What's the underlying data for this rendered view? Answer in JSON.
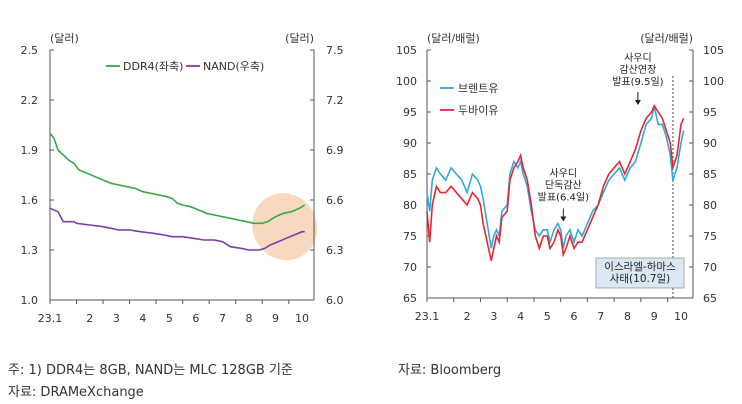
{
  "chart_data": [
    {
      "type": "line",
      "units": {
        "left": "(달러)",
        "right": "(달러)"
      },
      "x_ticks": [
        "23.1",
        "2",
        "3",
        "4",
        "5",
        "6",
        "7",
        "8",
        "9",
        "10"
      ],
      "left_axis": {
        "ylim": [
          1.0,
          2.5
        ],
        "ticks": [
          "2.5",
          "2.2",
          "1.9",
          "1.6",
          "1.3",
          "1.0"
        ]
      },
      "right_axis": {
        "ylim": [
          6.0,
          7.5
        ],
        "ticks": [
          "7.5",
          "7.2",
          "6.9",
          "6.6",
          "6.3",
          "6.0"
        ]
      },
      "legend_position": "top",
      "series": [
        {
          "name": "DDR4(좌축)",
          "axis": "left",
          "color": "#3aa845",
          "points": [
            [
              1.0,
              2.0
            ],
            [
              1.15,
              1.97
            ],
            [
              1.3,
              1.9
            ],
            [
              1.5,
              1.87
            ],
            [
              1.7,
              1.84
            ],
            [
              1.9,
              1.82
            ],
            [
              2.1,
              1.78
            ],
            [
              2.4,
              1.76
            ],
            [
              2.7,
              1.74
            ],
            [
              3.0,
              1.72
            ],
            [
              3.3,
              1.7
            ],
            [
              3.6,
              1.69
            ],
            [
              3.9,
              1.68
            ],
            [
              4.2,
              1.67
            ],
            [
              4.5,
              1.65
            ],
            [
              4.8,
              1.64
            ],
            [
              5.1,
              1.63
            ],
            [
              5.4,
              1.62
            ],
            [
              5.6,
              1.61
            ],
            [
              5.8,
              1.58
            ],
            [
              6.0,
              1.57
            ],
            [
              6.3,
              1.56
            ],
            [
              6.6,
              1.54
            ],
            [
              6.9,
              1.52
            ],
            [
              7.2,
              1.51
            ],
            [
              7.5,
              1.5
            ],
            [
              7.8,
              1.49
            ],
            [
              8.1,
              1.48
            ],
            [
              8.4,
              1.47
            ],
            [
              8.7,
              1.46
            ],
            [
              9.0,
              1.46
            ],
            [
              9.2,
              1.47
            ],
            [
              9.5,
              1.5
            ],
            [
              9.8,
              1.52
            ],
            [
              10.1,
              1.53
            ],
            [
              10.4,
              1.55
            ],
            [
              10.6,
              1.57
            ]
          ]
        },
        {
          "name": "NAND(우축)",
          "axis": "right",
          "color": "#7a3ea8",
          "points": [
            [
              1.0,
              6.55
            ],
            [
              1.3,
              6.53
            ],
            [
              1.5,
              6.47
            ],
            [
              1.9,
              6.47
            ],
            [
              2.0,
              6.46
            ],
            [
              2.5,
              6.45
            ],
            [
              3.0,
              6.44
            ],
            [
              3.3,
              6.43
            ],
            [
              3.6,
              6.42
            ],
            [
              4.0,
              6.42
            ],
            [
              4.4,
              6.41
            ],
            [
              4.9,
              6.4
            ],
            [
              5.3,
              6.39
            ],
            [
              5.6,
              6.38
            ],
            [
              6.0,
              6.38
            ],
            [
              6.4,
              6.37
            ],
            [
              6.8,
              6.36
            ],
            [
              7.2,
              6.36
            ],
            [
              7.5,
              6.35
            ],
            [
              7.8,
              6.32
            ],
            [
              8.2,
              6.31
            ],
            [
              8.5,
              6.3
            ],
            [
              8.9,
              6.3
            ],
            [
              9.1,
              6.31
            ],
            [
              9.3,
              6.33
            ],
            [
              9.6,
              6.35
            ],
            [
              9.9,
              6.37
            ],
            [
              10.2,
              6.39
            ],
            [
              10.5,
              6.41
            ],
            [
              10.6,
              6.41
            ]
          ]
        }
      ],
      "highlight_note": "orange-shaded region around September–October end of both series"
    },
    {
      "type": "line",
      "units": {
        "left": "(달러/배럴)",
        "right": "(달러/배럴)"
      },
      "x_ticks": [
        "23.1",
        "2",
        "3",
        "4",
        "5",
        "6",
        "7",
        "8",
        "9",
        "10"
      ],
      "ylim": [
        65,
        105
      ],
      "y_ticks": [
        "105",
        "100",
        "95",
        "90",
        "85",
        "80",
        "75",
        "70",
        "65"
      ],
      "legend_position": "top-left",
      "series": [
        {
          "name": "브렌트유",
          "color": "#34a8d8",
          "points": [
            [
              1.0,
              82
            ],
            [
              1.1,
              79
            ],
            [
              1.2,
              84
            ],
            [
              1.35,
              86
            ],
            [
              1.5,
              85
            ],
            [
              1.7,
              84
            ],
            [
              1.9,
              86
            ],
            [
              2.1,
              85
            ],
            [
              2.3,
              84
            ],
            [
              2.5,
              82
            ],
            [
              2.7,
              85
            ],
            [
              2.9,
              84
            ],
            [
              3.0,
              83
            ],
            [
              3.1,
              81
            ],
            [
              3.25,
              77
            ],
            [
              3.4,
              73
            ],
            [
              3.5,
              75
            ],
            [
              3.6,
              76
            ],
            [
              3.7,
              75
            ],
            [
              3.8,
              79
            ],
            [
              4.0,
              80
            ],
            [
              4.1,
              85
            ],
            [
              4.25,
              87
            ],
            [
              4.4,
              86
            ],
            [
              4.5,
              87
            ],
            [
              4.6,
              85
            ],
            [
              4.75,
              83
            ],
            [
              4.9,
              79
            ],
            [
              5.05,
              76
            ],
            [
              5.2,
              75
            ],
            [
              5.35,
              76
            ],
            [
              5.5,
              76
            ],
            [
              5.6,
              74
            ],
            [
              5.75,
              76
            ],
            [
              5.9,
              77
            ],
            [
              6.0,
              76
            ],
            [
              6.1,
              73
            ],
            [
              6.2,
              75
            ],
            [
              6.35,
              76
            ],
            [
              6.5,
              74
            ],
            [
              6.65,
              76
            ],
            [
              6.8,
              75
            ],
            [
              6.9,
              76
            ],
            [
              7.0,
              77
            ],
            [
              7.2,
              79
            ],
            [
              7.4,
              80
            ],
            [
              7.6,
              82
            ],
            [
              7.8,
              84
            ],
            [
              8.0,
              85
            ],
            [
              8.2,
              86
            ],
            [
              8.4,
              84
            ],
            [
              8.6,
              86
            ],
            [
              8.8,
              87
            ],
            [
              9.0,
              90
            ],
            [
              9.2,
              93
            ],
            [
              9.4,
              94
            ],
            [
              9.5,
              96
            ],
            [
              9.65,
              93
            ],
            [
              9.8,
              93
            ],
            [
              9.95,
              91
            ],
            [
              10.1,
              88
            ],
            [
              10.2,
              84
            ],
            [
              10.35,
              86
            ],
            [
              10.5,
              90
            ],
            [
              10.6,
              92
            ]
          ]
        },
        {
          "name": "두바이유",
          "color": "#e8262f",
          "points": [
            [
              1.0,
              79
            ],
            [
              1.1,
              74
            ],
            [
              1.2,
              80
            ],
            [
              1.35,
              83
            ],
            [
              1.5,
              82
            ],
            [
              1.7,
              82
            ],
            [
              1.9,
              83
            ],
            [
              2.1,
              82
            ],
            [
              2.3,
              81
            ],
            [
              2.5,
              80
            ],
            [
              2.7,
              82
            ],
            [
              2.9,
              81
            ],
            [
              3.0,
              80
            ],
            [
              3.1,
              77
            ],
            [
              3.25,
              74
            ],
            [
              3.4,
              71
            ],
            [
              3.5,
              73
            ],
            [
              3.6,
              75
            ],
            [
              3.7,
              74
            ],
            [
              3.8,
              78
            ],
            [
              4.0,
              79
            ],
            [
              4.1,
              84
            ],
            [
              4.25,
              86
            ],
            [
              4.4,
              87
            ],
            [
              4.5,
              88
            ],
            [
              4.6,
              86
            ],
            [
              4.75,
              84
            ],
            [
              4.9,
              80
            ],
            [
              5.05,
              75
            ],
            [
              5.2,
              73
            ],
            [
              5.35,
              75
            ],
            [
              5.5,
              75
            ],
            [
              5.6,
              73
            ],
            [
              5.75,
              74
            ],
            [
              5.9,
              76
            ],
            [
              6.0,
              75
            ],
            [
              6.1,
              72
            ],
            [
              6.2,
              73
            ],
            [
              6.35,
              75
            ],
            [
              6.5,
              73
            ],
            [
              6.65,
              74
            ],
            [
              6.8,
              74
            ],
            [
              6.9,
              75
            ],
            [
              7.0,
              76
            ],
            [
              7.2,
              78
            ],
            [
              7.4,
              80
            ],
            [
              7.6,
              83
            ],
            [
              7.8,
              85
            ],
            [
              8.0,
              86
            ],
            [
              8.2,
              87
            ],
            [
              8.4,
              85
            ],
            [
              8.6,
              87
            ],
            [
              8.8,
              89
            ],
            [
              9.0,
              92
            ],
            [
              9.2,
              94
            ],
            [
              9.4,
              95
            ],
            [
              9.5,
              96
            ],
            [
              9.65,
              95
            ],
            [
              9.8,
              94
            ],
            [
              9.95,
              92
            ],
            [
              10.1,
              90
            ],
            [
              10.2,
              86
            ],
            [
              10.35,
              88
            ],
            [
              10.5,
              93
            ],
            [
              10.6,
              94
            ]
          ]
        }
      ],
      "annotations": [
        {
          "text": [
            "사우디",
            "단독감산",
            "발표(6.4일)"
          ],
          "x": 6.1,
          "y": 77.5
        },
        {
          "text": [
            "사우디",
            "감산연장",
            "발표(9.5일)"
          ],
          "x": 9.45,
          "y": 95
        },
        {
          "text": [
            "이스라엘-하마스",
            "사태(10.7일)"
          ],
          "x": 10.2
        }
      ]
    }
  ],
  "notes": {
    "left_note_1": "주: 1) DDR4는 8GB, NAND는 MLC 128GB 기준",
    "left_note_2": "자료: DRAMeXchange",
    "right_note_1": "자료: Bloomberg"
  }
}
